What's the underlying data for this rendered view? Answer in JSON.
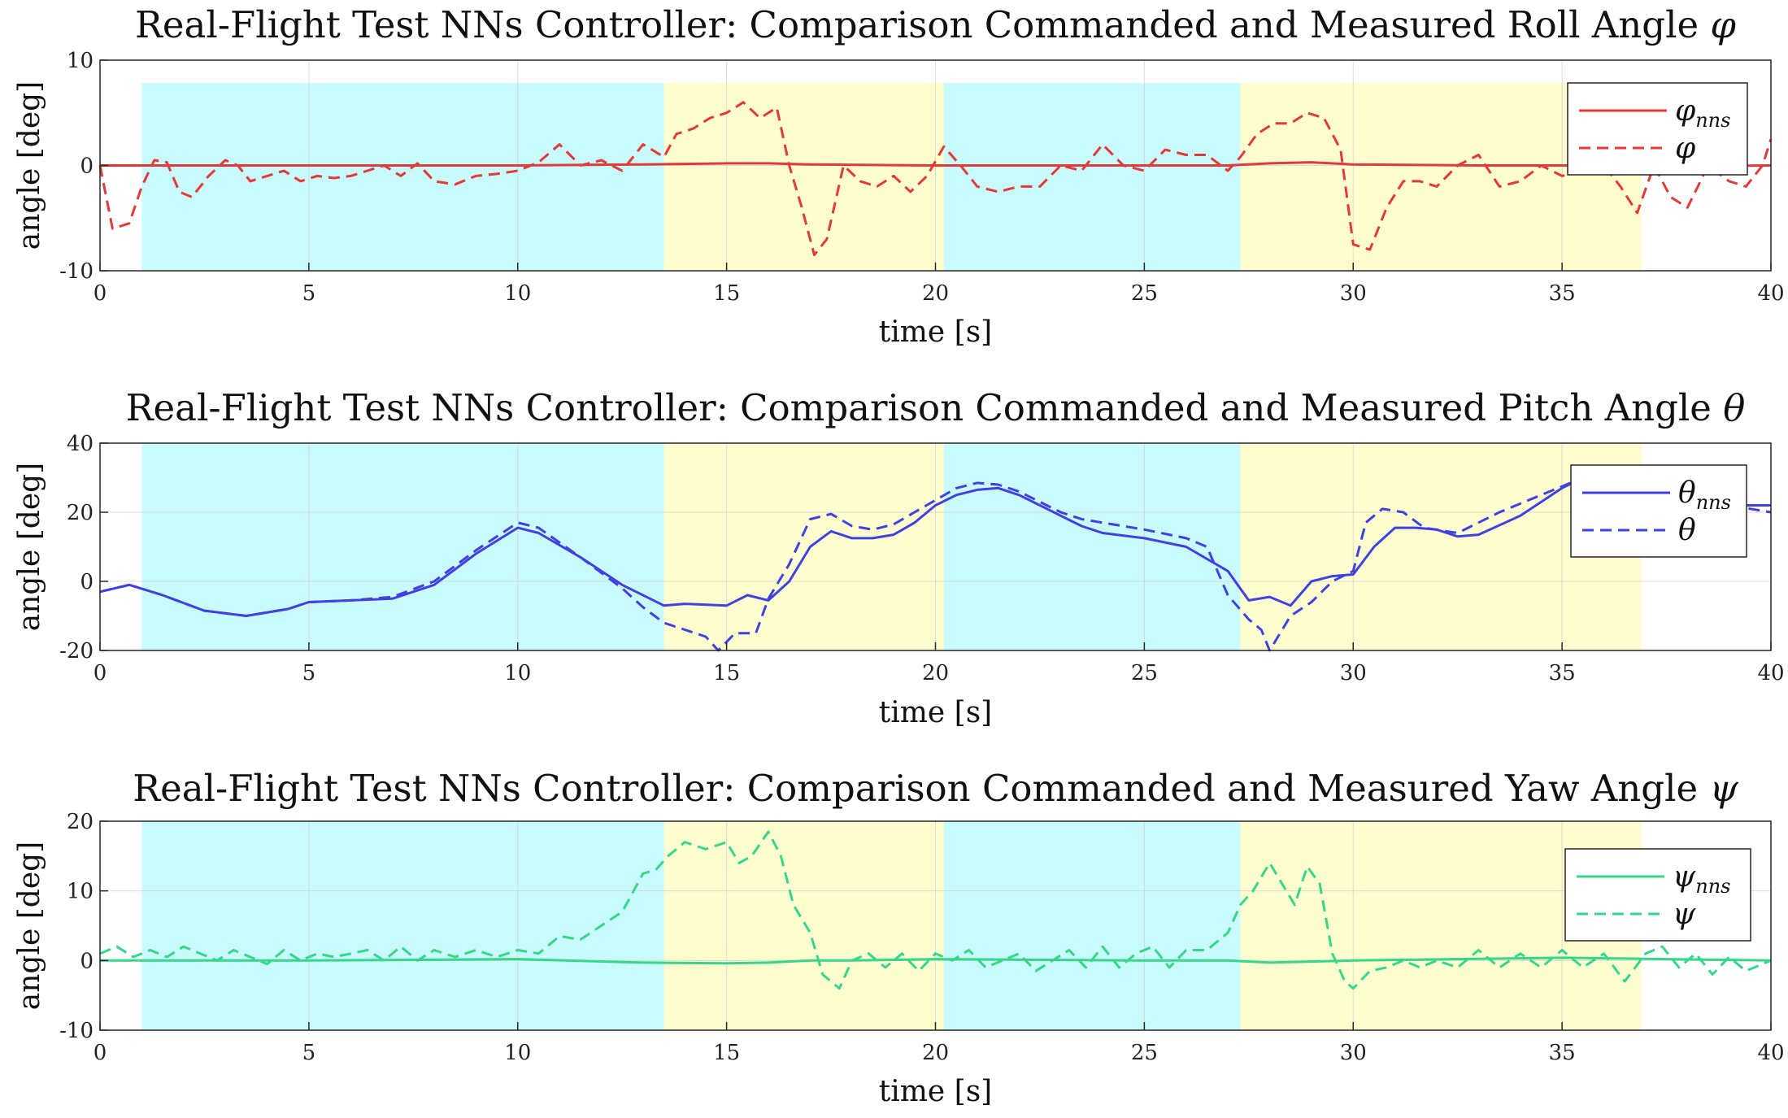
{
  "chart_data": [
    {
      "type": "line",
      "title": "Real-Flight Test NNs Controller: Comparison Commanded and Measured Roll Angle",
      "title_symbol": "φ",
      "xlabel": "time [s]",
      "ylabel": "angle [deg]",
      "xlim": [
        0,
        40
      ],
      "ylim": [
        -10,
        10
      ],
      "xticks": [
        0,
        5,
        10,
        15,
        20,
        25,
        30,
        35,
        40
      ],
      "yticks": [
        -10,
        0,
        10
      ],
      "color": "#e03a3a",
      "legend_position": "top-right",
      "phases": [
        {
          "start": 1.0,
          "end": 13.5,
          "color": "#c9fafc"
        },
        {
          "start": 13.5,
          "end": 20.2,
          "color": "#fdfdcf"
        },
        {
          "start": 20.2,
          "end": 27.3,
          "color": "#c9fafc"
        },
        {
          "start": 27.3,
          "end": 36.9,
          "color": "#fdfdcf"
        }
      ],
      "series": [
        {
          "name": "φ_nns",
          "symbol": "φ",
          "subscript": "nns",
          "style": "solid",
          "x": [
            0,
            5,
            10,
            13,
            15,
            16,
            17,
            20,
            25,
            27,
            28,
            29,
            30,
            33,
            35,
            36,
            37,
            40
          ],
          "y": [
            0,
            0,
            0,
            0.1,
            0.2,
            0.2,
            0.1,
            0,
            0,
            0,
            0.2,
            0.3,
            0.1,
            0,
            0,
            0,
            -0.1,
            0
          ]
        },
        {
          "name": "φ",
          "symbol": "φ",
          "subscript": "",
          "style": "dashed",
          "x": [
            0,
            0.3,
            0.7,
            1.0,
            1.3,
            1.6,
            1.9,
            2.2,
            2.6,
            3.0,
            3.3,
            3.6,
            4.0,
            4.4,
            4.8,
            5.2,
            5.6,
            6.0,
            6.4,
            6.8,
            7.2,
            7.6,
            8.0,
            8.5,
            9.0,
            9.5,
            10.0,
            10.5,
            11.0,
            11.5,
            12.0,
            12.5,
            13.0,
            13.5,
            13.8,
            14.2,
            14.6,
            15.0,
            15.4,
            15.8,
            16.2,
            16.5,
            16.8,
            17.1,
            17.4,
            17.8,
            18.2,
            18.6,
            19.0,
            19.4,
            19.8,
            20.2,
            20.6,
            21.0,
            21.5,
            22.0,
            22.5,
            23.0,
            23.5,
            24.0,
            24.5,
            25.0,
            25.5,
            26.0,
            26.5,
            27.0,
            27.3,
            27.7,
            28.1,
            28.5,
            28.9,
            29.3,
            29.7,
            30.0,
            30.4,
            30.8,
            31.2,
            31.6,
            32.0,
            32.5,
            33.0,
            33.5,
            34.0,
            34.5,
            35.0,
            35.5,
            36.0,
            36.4,
            36.8,
            37.2,
            37.6,
            38.0,
            38.5,
            39.0,
            39.4,
            39.8,
            40.0
          ],
          "y": [
            0,
            -6,
            -5.5,
            -2,
            0.5,
            0.3,
            -2.5,
            -3,
            -1,
            0.5,
            0,
            -1.5,
            -1,
            -0.5,
            -1.5,
            -1,
            -1.2,
            -1,
            -0.5,
            0,
            -1,
            0.2,
            -1.5,
            -1.8,
            -1,
            -0.8,
            -0.5,
            0.3,
            2,
            0,
            0.5,
            -0.5,
            2,
            0.8,
            3,
            3.5,
            4.5,
            5,
            6,
            4.5,
            5.5,
            0,
            -4,
            -8.5,
            -7,
            0,
            -1.5,
            -2,
            -1,
            -2.5,
            -1,
            1.8,
            0,
            -2,
            -2.5,
            -2,
            -2,
            0,
            -0.5,
            2,
            0,
            -0.5,
            1.5,
            1,
            1,
            -0.5,
            0.8,
            3,
            4,
            4,
            5,
            4.5,
            1.5,
            -7.5,
            -8,
            -4,
            -1.5,
            -1.5,
            -2,
            0,
            1,
            -2,
            -1.5,
            0,
            -1,
            -0.5,
            0,
            -2,
            -4.5,
            0,
            -3,
            -4,
            0,
            -1.5,
            -2,
            0,
            2.5
          ]
        }
      ]
    },
    {
      "type": "line",
      "title": "Real-Flight Test NNs Controller: Comparison Commanded and Measured Pitch Angle",
      "title_symbol": "θ",
      "xlabel": "time [s]",
      "ylabel": "angle [deg]",
      "xlim": [
        0,
        40
      ],
      "ylim": [
        -20,
        40
      ],
      "xticks": [
        0,
        5,
        10,
        15,
        20,
        25,
        30,
        35,
        40
      ],
      "yticks": [
        -20,
        0,
        20,
        40
      ],
      "color": "#4141e0",
      "legend_position": "top-right",
      "phases": [
        {
          "start": 1.0,
          "end": 13.5,
          "color": "#c9fafc"
        },
        {
          "start": 13.5,
          "end": 20.2,
          "color": "#fdfdcf"
        },
        {
          "start": 20.2,
          "end": 27.3,
          "color": "#c9fafc"
        },
        {
          "start": 27.3,
          "end": 36.9,
          "color": "#fdfdcf"
        }
      ],
      "series": [
        {
          "name": "θ_nns",
          "symbol": "θ",
          "subscript": "nns",
          "style": "solid",
          "x": [
            0,
            0.7,
            1.5,
            2.5,
            3.5,
            4.5,
            5.0,
            6.0,
            7.0,
            8.0,
            9.0,
            10.0,
            10.5,
            11.5,
            12.5,
            13.5,
            14.0,
            15.0,
            15.5,
            16.0,
            16.5,
            17.0,
            17.5,
            18.0,
            18.5,
            19.0,
            19.5,
            20.0,
            20.5,
            21.0,
            21.5,
            22.0,
            22.5,
            23.0,
            23.5,
            24.0,
            25.0,
            26.0,
            27.0,
            27.5,
            28.0,
            28.5,
            29.0,
            29.5,
            30.0,
            30.5,
            31.0,
            31.5,
            32.0,
            32.5,
            33.0,
            34.0,
            35.0,
            35.5,
            36.0,
            36.5,
            37.0,
            37.5,
            38.0,
            39.0,
            40.0
          ],
          "y": [
            -3,
            -1,
            -4,
            -8.5,
            -10,
            -8,
            -6,
            -5.5,
            -5,
            -1,
            8,
            15.5,
            14,
            7,
            -1,
            -7,
            -6.5,
            -7,
            -4,
            -5.5,
            0,
            10,
            14.5,
            12.5,
            12.5,
            13.5,
            17,
            22,
            25,
            26.5,
            27,
            25,
            22,
            19,
            16,
            14,
            12.5,
            10,
            3,
            -5.5,
            -4.5,
            -7,
            0,
            1.5,
            2,
            10,
            15.5,
            15.5,
            15,
            13,
            13.5,
            19,
            27,
            30,
            30.5,
            30,
            27.5,
            25,
            23,
            22,
            22
          ]
        },
        {
          "name": "θ",
          "symbol": "θ",
          "subscript": "",
          "style": "dashed",
          "x": [
            0,
            0.7,
            1.5,
            2.5,
            3.5,
            4.5,
            5.0,
            6.0,
            7.0,
            8.0,
            9.0,
            10.0,
            10.5,
            11.5,
            12.5,
            13.0,
            13.5,
            14.0,
            14.5,
            14.8,
            15.2,
            15.7,
            16.0,
            16.5,
            17.0,
            17.5,
            18.0,
            18.5,
            19.0,
            19.5,
            20.0,
            20.5,
            21.0,
            21.5,
            22.0,
            22.5,
            23.0,
            23.5,
            24.0,
            25.0,
            26.0,
            26.5,
            27.0,
            27.5,
            27.8,
            28.0,
            28.5,
            29.0,
            29.5,
            30.0,
            30.3,
            30.7,
            31.2,
            31.7,
            32.5,
            33.5,
            34.5,
            35.5,
            36.0,
            36.5,
            37.0,
            37.5,
            38.0,
            39.0,
            40.0
          ],
          "y": [
            -3,
            -1,
            -4,
            -8.5,
            -10,
            -8,
            -6,
            -5.5,
            -4.5,
            0,
            9,
            17,
            15.5,
            7,
            -2,
            -7.5,
            -12,
            -14,
            -16,
            -20,
            -15,
            -15,
            -5,
            5,
            18,
            19.5,
            16,
            15,
            16.5,
            20,
            23.5,
            27,
            28.5,
            28,
            26,
            23,
            20,
            18,
            17,
            15,
            12.5,
            10,
            -4,
            -11,
            -14,
            -20,
            -10,
            -6,
            0,
            3,
            17,
            21,
            20,
            15.5,
            14,
            20,
            25,
            30,
            31,
            31,
            29,
            26,
            23,
            22,
            20
          ]
        }
      ]
    },
    {
      "type": "line",
      "title": "Real-Flight Test NNs Controller: Comparison Commanded and Measured Yaw Angle",
      "title_symbol": "ψ",
      "xlabel": "time [s]",
      "ylabel": "angle [deg]",
      "xlim": [
        0,
        40
      ],
      "ylim": [
        -10,
        20
      ],
      "xticks": [
        0,
        5,
        10,
        15,
        20,
        25,
        30,
        35,
        40
      ],
      "yticks": [
        -10,
        0,
        10,
        20
      ],
      "color": "#36d68b",
      "legend_position": "right",
      "phases": [
        {
          "start": 1.0,
          "end": 13.5,
          "color": "#c9fafc"
        },
        {
          "start": 13.5,
          "end": 20.2,
          "color": "#fdfdcf"
        },
        {
          "start": 20.2,
          "end": 27.3,
          "color": "#c9fafc"
        },
        {
          "start": 27.3,
          "end": 36.9,
          "color": "#fdfdcf"
        }
      ],
      "series": [
        {
          "name": "ψ_nns",
          "symbol": "ψ",
          "subscript": "nns",
          "style": "solid",
          "x": [
            0,
            5,
            10,
            13,
            15,
            16,
            17,
            18,
            20,
            25,
            27,
            28,
            30,
            35,
            40
          ],
          "y": [
            0,
            0,
            0.2,
            -0.3,
            -0.4,
            -0.3,
            0,
            0,
            0.2,
            0,
            0,
            -0.3,
            0,
            0.4,
            0
          ]
        },
        {
          "name": "ψ",
          "symbol": "ψ",
          "subscript": "",
          "style": "dashed",
          "x": [
            0,
            0.4,
            0.8,
            1.2,
            1.6,
            2.0,
            2.4,
            2.8,
            3.2,
            3.6,
            4.0,
            4.4,
            4.8,
            5.2,
            5.6,
            6.0,
            6.4,
            6.8,
            7.2,
            7.6,
            8.0,
            8.5,
            9.0,
            9.5,
            10.0,
            10.5,
            11.0,
            11.5,
            12.0,
            12.5,
            13.0,
            13.3,
            13.6,
            14.0,
            14.5,
            15.0,
            15.3,
            15.6,
            16.0,
            16.3,
            16.6,
            17.0,
            17.3,
            17.7,
            18.0,
            18.4,
            18.8,
            19.2,
            19.6,
            20.0,
            20.4,
            20.8,
            21.2,
            21.6,
            22.0,
            22.4,
            22.8,
            23.2,
            23.6,
            24.0,
            24.4,
            24.8,
            25.2,
            25.6,
            26.0,
            26.5,
            27.0,
            27.3,
            27.6,
            28.0,
            28.3,
            28.6,
            28.9,
            29.2,
            29.5,
            29.8,
            30.0,
            30.4,
            30.8,
            31.2,
            31.6,
            32.0,
            32.5,
            33.0,
            33.5,
            34.0,
            34.5,
            35.0,
            35.5,
            36.0,
            36.5,
            37.0,
            37.4,
            37.8,
            38.2,
            38.6,
            39.0,
            39.4,
            39.8,
            40.0
          ],
          "y": [
            1,
            2,
            0.5,
            1.5,
            0.5,
            2,
            1,
            0,
            1.5,
            0.5,
            -0.5,
            1.5,
            0,
            1,
            0.5,
            1,
            1.5,
            0,
            2,
            0,
            1.5,
            0.5,
            1.5,
            0.5,
            1.5,
            1,
            3.5,
            3,
            5,
            7,
            12.5,
            13,
            15,
            17,
            16,
            17,
            14,
            15,
            18.5,
            15,
            8,
            4,
            -2,
            -4,
            0,
            1,
            -1,
            1,
            -1.5,
            1,
            0,
            1.5,
            -1,
            0,
            1,
            -1.5,
            0,
            1.5,
            -1,
            2,
            -1,
            1,
            2,
            -1,
            1.5,
            1.5,
            4,
            8,
            10,
            14,
            11,
            8,
            13.5,
            11,
            1,
            -3,
            -4,
            -1.5,
            -1,
            0,
            -1,
            0,
            -1,
            1.5,
            -1,
            1,
            -1,
            1.5,
            -1,
            1,
            -3,
            1,
            2,
            -1,
            1,
            -2,
            0.5,
            -1.5,
            -0.5,
            0
          ]
        }
      ]
    }
  ]
}
